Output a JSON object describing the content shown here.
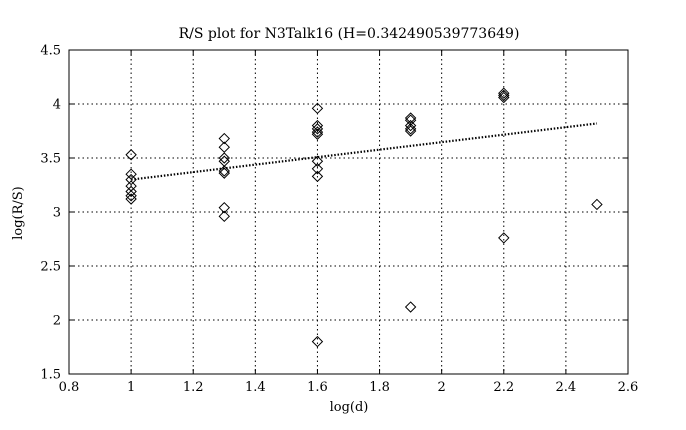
{
  "chart_data": {
    "type": "scatter",
    "title": "R/S plot for N3Talk16 (H=0.342490539773649)",
    "xlabel": "log(d)",
    "ylabel": "log(R/S)",
    "xlim": [
      0.8,
      2.6
    ],
    "ylim": [
      1.5,
      4.5
    ],
    "xticks": [
      0.8,
      1,
      1.2,
      1.4,
      1.6,
      1.8,
      2,
      2.2,
      2.4,
      2.6
    ],
    "yticks": [
      1.5,
      2,
      2.5,
      3,
      3.5,
      4,
      4.5
    ],
    "xtick_labels": [
      "0.8",
      "1",
      "1.2",
      "1.4",
      "1.6",
      "1.8",
      "2",
      "2.2",
      "2.4",
      "2.6"
    ],
    "ytick_labels": [
      "1.5",
      "2",
      "2.5",
      "3",
      "3.5",
      "4",
      "4.5"
    ],
    "grid": true,
    "series": [
      {
        "marker": "diamond",
        "points": [
          [
            1.0,
            3.53
          ],
          [
            1.0,
            3.35
          ],
          [
            1.0,
            3.3
          ],
          [
            1.0,
            3.24
          ],
          [
            1.0,
            3.19
          ],
          [
            1.0,
            3.15
          ],
          [
            1.0,
            3.12
          ],
          [
            1.3,
            3.68
          ],
          [
            1.3,
            3.6
          ],
          [
            1.3,
            3.5
          ],
          [
            1.3,
            3.47
          ],
          [
            1.3,
            3.38
          ],
          [
            1.3,
            3.36
          ],
          [
            1.3,
            3.04
          ],
          [
            1.3,
            2.96
          ],
          [
            1.6,
            3.96
          ],
          [
            1.6,
            3.8
          ],
          [
            1.6,
            3.77
          ],
          [
            1.6,
            3.74
          ],
          [
            1.6,
            3.72
          ],
          [
            1.6,
            3.47
          ],
          [
            1.6,
            3.4
          ],
          [
            1.6,
            3.33
          ],
          [
            1.6,
            1.8
          ],
          [
            1.9,
            3.87
          ],
          [
            1.9,
            3.85
          ],
          [
            1.9,
            3.8
          ],
          [
            1.9,
            3.77
          ],
          [
            1.9,
            3.75
          ],
          [
            1.9,
            2.12
          ],
          [
            2.2,
            4.1
          ],
          [
            2.2,
            4.08
          ],
          [
            2.2,
            4.06
          ],
          [
            2.2,
            2.76
          ],
          [
            2.5,
            3.07
          ]
        ]
      },
      {
        "line": "dotted",
        "points": [
          [
            1.0,
            3.3
          ],
          [
            2.5,
            3.82
          ]
        ]
      }
    ]
  }
}
